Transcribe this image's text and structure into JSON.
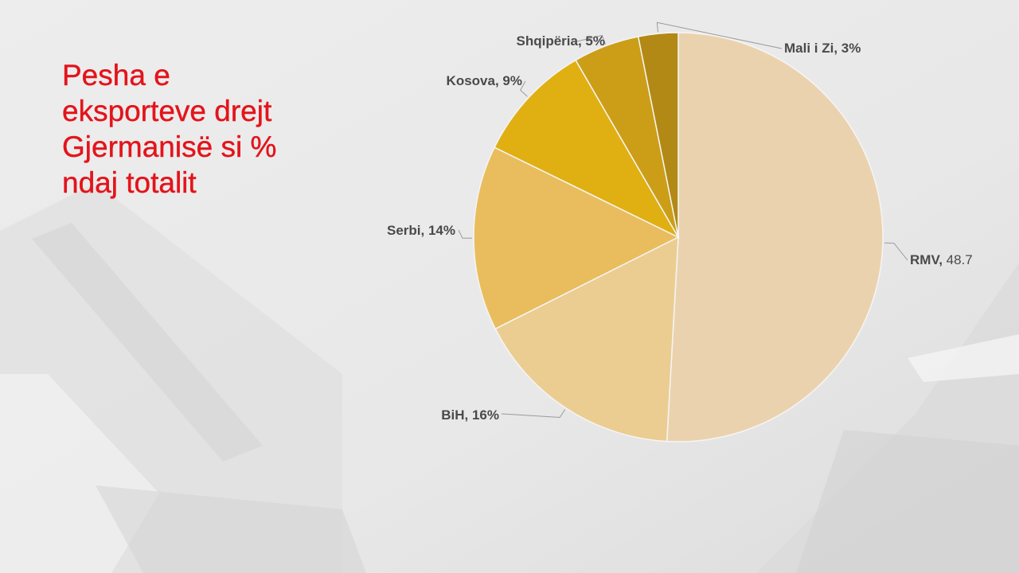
{
  "title": "Pesha e\neksporteve drejt\nGjermanisë si %\nndaj totalit",
  "chart_data": {
    "type": "pie",
    "title": "Pesha e eksporteve drejt Gjermanisë si % ndaj totalit",
    "start_angle_deg": 0,
    "direction": "clockwise",
    "slices": [
      {
        "key": "rmv",
        "name": "RMV",
        "value_label": "48.7",
        "value": 48.7,
        "color": "#ebd2ae"
      },
      {
        "key": "bih",
        "name": "BiH",
        "value_label": "16%",
        "value": 16,
        "color": "#ebcd92"
      },
      {
        "key": "serbi",
        "name": "Serbi",
        "value_label": "14%",
        "value": 14,
        "color": "#e9bd5e"
      },
      {
        "key": "kosova",
        "name": "Kosova",
        "value_label": "9%",
        "value": 9,
        "color": "#e0af12"
      },
      {
        "key": "shqiperia",
        "name": "Shqipëria",
        "value_label": "5%",
        "value": 5,
        "color": "#cc9e18"
      },
      {
        "key": "malizi",
        "name": "Mali i Zi",
        "value_label": "3%",
        "value": 3,
        "color": "#b28914"
      }
    ]
  },
  "colors": {
    "title": "#e3141b",
    "label_text": "#4a4a4a",
    "leader_line": "#9a9a9a",
    "slice_border": "#f5f5f5",
    "background": "#e9e9e9"
  }
}
